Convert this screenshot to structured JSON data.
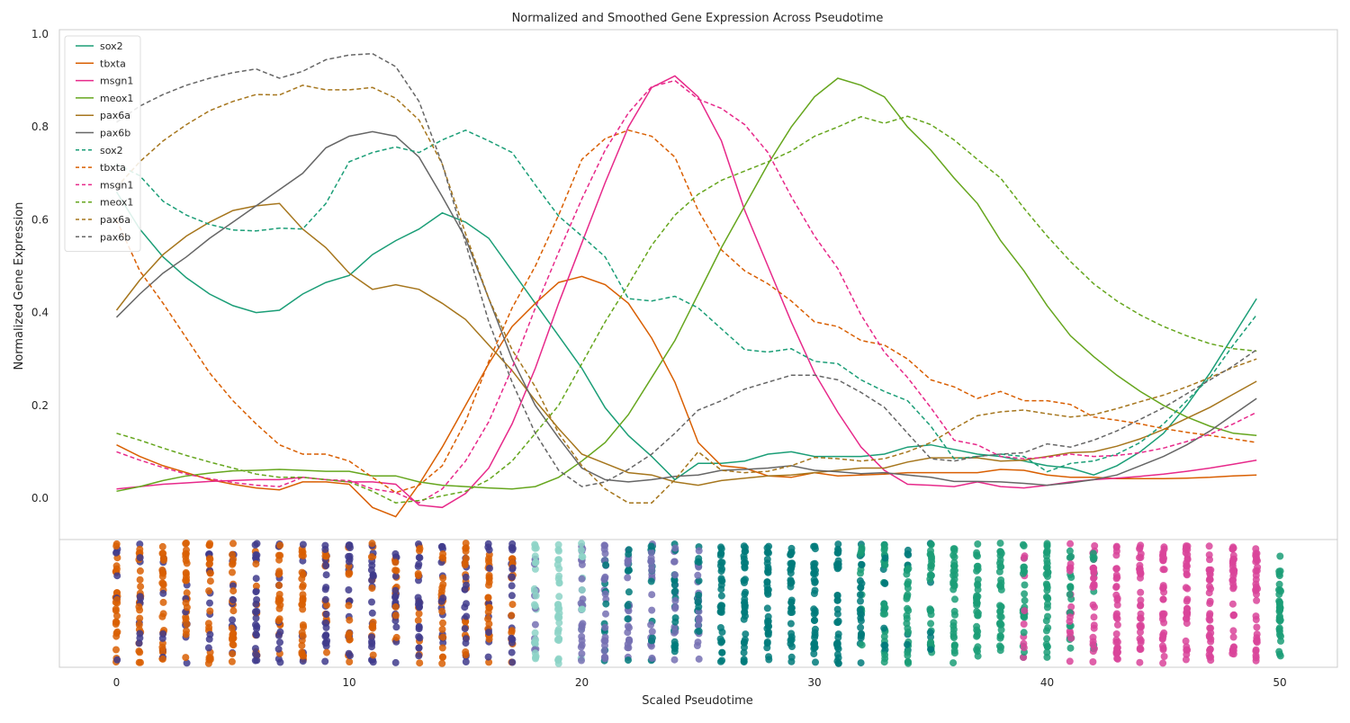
{
  "chart_data": {
    "type": "line",
    "title": "Normalized and Smoothed Gene Expression Across Pseudotime",
    "xlabel": "Scaled Pseudotime",
    "ylabel": "Normalized Gene Expression",
    "xlim": [
      -2.5,
      52.5
    ],
    "ylim": [
      -0.09,
      1.0
    ],
    "xticks": [
      0,
      10,
      20,
      30,
      40,
      50
    ],
    "yticks": [
      0.0,
      0.2,
      0.4,
      0.6,
      0.8,
      1.0
    ],
    "grid": false,
    "legend_position": "top-left",
    "x": [
      0,
      1,
      2,
      3,
      4,
      5,
      6,
      7,
      8,
      9,
      10,
      11,
      12,
      13,
      14,
      15,
      16,
      17,
      18,
      19,
      20,
      21,
      22,
      23,
      24,
      25,
      26,
      27,
      28,
      29,
      30,
      31,
      32,
      33,
      34,
      35,
      36,
      37,
      38,
      39,
      40,
      41,
      42,
      43,
      44,
      45,
      46,
      47,
      48,
      49
    ],
    "series": [
      {
        "name": "sox2",
        "color": "#1b9e77",
        "style": "solid",
        "values": [
          0.66,
          0.58,
          0.52,
          0.475,
          0.44,
          0.415,
          0.4,
          0.405,
          0.44,
          0.465,
          0.48,
          0.525,
          0.555,
          0.58,
          0.615,
          0.595,
          0.56,
          0.49,
          0.42,
          0.35,
          0.28,
          0.195,
          0.135,
          0.09,
          0.04,
          0.075,
          0.075,
          0.08,
          0.095,
          0.1,
          0.09,
          0.09,
          0.09,
          0.095,
          0.11,
          0.115,
          0.105,
          0.095,
          0.09,
          0.08,
          0.07,
          0.065,
          0.05,
          0.07,
          0.1,
          0.14,
          0.2,
          0.27,
          0.35,
          0.43
        ]
      },
      {
        "name": "tbxta",
        "color": "#d95f02",
        "style": "solid",
        "values": [
          0.115,
          0.09,
          0.07,
          0.055,
          0.04,
          0.03,
          0.022,
          0.018,
          0.035,
          0.035,
          0.03,
          -0.02,
          -0.04,
          0.03,
          0.11,
          0.2,
          0.29,
          0.37,
          0.42,
          0.465,
          0.478,
          0.46,
          0.42,
          0.345,
          0.25,
          0.12,
          0.07,
          0.065,
          0.048,
          0.045,
          0.055,
          0.048,
          0.05,
          0.052,
          0.055,
          0.055,
          0.055,
          0.055,
          0.062,
          0.06,
          0.05,
          0.045,
          0.045,
          0.042,
          0.042,
          0.042,
          0.043,
          0.045,
          0.048,
          0.05
        ]
      },
      {
        "name": "msgn1",
        "color": "#e7298a",
        "style": "solid",
        "values": [
          0.02,
          0.025,
          0.03,
          0.033,
          0.036,
          0.038,
          0.04,
          0.04,
          0.045,
          0.04,
          0.035,
          0.035,
          0.03,
          -0.015,
          -0.02,
          0.01,
          0.065,
          0.16,
          0.28,
          0.42,
          0.55,
          0.68,
          0.8,
          0.885,
          0.91,
          0.865,
          0.77,
          0.62,
          0.5,
          0.38,
          0.27,
          0.185,
          0.11,
          0.06,
          0.03,
          0.028,
          0.025,
          0.035,
          0.025,
          0.022,
          0.028,
          0.035,
          0.04,
          0.043,
          0.047,
          0.052,
          0.058,
          0.065,
          0.073,
          0.082
        ]
      },
      {
        "name": "meox1",
        "color": "#66a61e",
        "style": "solid",
        "values": [
          0.015,
          0.025,
          0.038,
          0.048,
          0.054,
          0.059,
          0.06,
          0.062,
          0.06,
          0.058,
          0.058,
          0.048,
          0.048,
          0.035,
          0.028,
          0.025,
          0.022,
          0.02,
          0.025,
          0.045,
          0.08,
          0.12,
          0.18,
          0.26,
          0.34,
          0.44,
          0.54,
          0.63,
          0.72,
          0.8,
          0.865,
          0.905,
          0.89,
          0.865,
          0.8,
          0.75,
          0.69,
          0.635,
          0.555,
          0.49,
          0.415,
          0.35,
          0.305,
          0.265,
          0.23,
          0.2,
          0.175,
          0.155,
          0.14,
          0.135
        ]
      },
      {
        "name": "pax6a",
        "color": "#a6761d",
        "style": "solid",
        "values": [
          0.405,
          0.47,
          0.525,
          0.565,
          0.595,
          0.62,
          0.63,
          0.635,
          0.58,
          0.54,
          0.485,
          0.45,
          0.46,
          0.45,
          0.42,
          0.385,
          0.33,
          0.275,
          0.21,
          0.15,
          0.095,
          0.075,
          0.055,
          0.05,
          0.035,
          0.028,
          0.038,
          0.043,
          0.048,
          0.05,
          0.055,
          0.06,
          0.065,
          0.065,
          0.078,
          0.087,
          0.087,
          0.087,
          0.08,
          0.082,
          0.09,
          0.098,
          0.1,
          0.112,
          0.128,
          0.148,
          0.172,
          0.196,
          0.224,
          0.252
        ]
      },
      {
        "name": "pax6b",
        "color": "#666666",
        "style": "solid",
        "values": [
          0.39,
          0.44,
          0.485,
          0.52,
          0.56,
          0.595,
          0.63,
          0.665,
          0.7,
          0.755,
          0.78,
          0.79,
          0.78,
          0.735,
          0.65,
          0.56,
          0.43,
          0.3,
          0.2,
          0.13,
          0.065,
          0.04,
          0.035,
          0.04,
          0.047,
          0.05,
          0.06,
          0.062,
          0.065,
          0.07,
          0.06,
          0.057,
          0.053,
          0.055,
          0.05,
          0.045,
          0.036,
          0.036,
          0.035,
          0.032,
          0.028,
          0.033,
          0.04,
          0.05,
          0.07,
          0.09,
          0.115,
          0.145,
          0.18,
          0.215
        ]
      },
      {
        "name": "sox2",
        "color": "#1b9e77",
        "style": "dashed",
        "values": [
          0.72,
          0.695,
          0.64,
          0.61,
          0.59,
          0.578,
          0.576,
          0.582,
          0.58,
          0.635,
          0.725,
          0.745,
          0.757,
          0.745,
          0.772,
          0.793,
          0.77,
          0.745,
          0.675,
          0.608,
          0.565,
          0.52,
          0.43,
          0.425,
          0.435,
          0.41,
          0.365,
          0.32,
          0.315,
          0.322,
          0.295,
          0.29,
          0.255,
          0.23,
          0.21,
          0.155,
          0.085,
          0.09,
          0.095,
          0.09,
          0.057,
          0.075,
          0.08,
          0.095,
          0.12,
          0.16,
          0.21,
          0.26,
          0.33,
          0.395
        ]
      },
      {
        "name": "tbxta",
        "color": "#d95f02",
        "style": "dashed",
        "values": [
          0.6,
          0.49,
          0.42,
          0.345,
          0.27,
          0.21,
          0.16,
          0.115,
          0.095,
          0.095,
          0.08,
          0.045,
          0.012,
          0.028,
          0.07,
          0.165,
          0.295,
          0.41,
          0.5,
          0.61,
          0.73,
          0.775,
          0.793,
          0.78,
          0.735,
          0.62,
          0.535,
          0.49,
          0.462,
          0.425,
          0.38,
          0.37,
          0.34,
          0.33,
          0.3,
          0.255,
          0.24,
          0.215,
          0.23,
          0.21,
          0.21,
          0.202,
          0.175,
          0.168,
          0.16,
          0.15,
          0.142,
          0.135,
          0.128,
          0.12
        ]
      },
      {
        "name": "msgn1",
        "color": "#e7298a",
        "style": "dashed",
        "values": [
          0.1,
          0.082,
          0.066,
          0.052,
          0.042,
          0.034,
          0.028,
          0.025,
          0.045,
          0.04,
          0.038,
          0.02,
          0.012,
          -0.01,
          0.02,
          0.08,
          0.165,
          0.28,
          0.41,
          0.53,
          0.645,
          0.75,
          0.83,
          0.887,
          0.9,
          0.86,
          0.84,
          0.805,
          0.745,
          0.65,
          0.565,
          0.495,
          0.395,
          0.315,
          0.26,
          0.195,
          0.125,
          0.115,
          0.09,
          0.085,
          0.088,
          0.095,
          0.09,
          0.092,
          0.098,
          0.108,
          0.122,
          0.138,
          0.16,
          0.185
        ]
      },
      {
        "name": "meox1",
        "color": "#66a61e",
        "style": "dashed",
        "values": [
          0.14,
          0.125,
          0.108,
          0.092,
          0.078,
          0.065,
          0.052,
          0.045,
          0.045,
          0.04,
          0.035,
          0.015,
          -0.01,
          -0.005,
          0.005,
          0.015,
          0.04,
          0.08,
          0.14,
          0.2,
          0.29,
          0.38,
          0.46,
          0.545,
          0.61,
          0.655,
          0.685,
          0.705,
          0.725,
          0.748,
          0.78,
          0.8,
          0.822,
          0.808,
          0.823,
          0.805,
          0.772,
          0.73,
          0.69,
          0.625,
          0.565,
          0.51,
          0.462,
          0.425,
          0.395,
          0.37,
          0.35,
          0.333,
          0.322,
          0.317
        ]
      },
      {
        "name": "pax6a",
        "color": "#a6761d",
        "style": "dashed",
        "values": [
          0.67,
          0.725,
          0.77,
          0.805,
          0.835,
          0.855,
          0.87,
          0.869,
          0.89,
          0.88,
          0.88,
          0.885,
          0.862,
          0.815,
          0.72,
          0.57,
          0.43,
          0.32,
          0.24,
          0.14,
          0.07,
          0.02,
          -0.01,
          -0.01,
          0.04,
          0.1,
          0.06,
          0.055,
          0.058,
          0.07,
          0.088,
          0.085,
          0.08,
          0.085,
          0.1,
          0.12,
          0.15,
          0.178,
          0.186,
          0.19,
          0.182,
          0.175,
          0.18,
          0.193,
          0.208,
          0.222,
          0.24,
          0.26,
          0.282,
          0.3
        ]
      },
      {
        "name": "pax6b",
        "color": "#666666",
        "style": "dashed",
        "values": [
          0.81,
          0.845,
          0.87,
          0.89,
          0.905,
          0.917,
          0.925,
          0.905,
          0.92,
          0.945,
          0.955,
          0.958,
          0.93,
          0.855,
          0.72,
          0.55,
          0.38,
          0.25,
          0.14,
          0.06,
          0.025,
          0.035,
          0.062,
          0.095,
          0.14,
          0.19,
          0.21,
          0.235,
          0.25,
          0.265,
          0.265,
          0.255,
          0.228,
          0.196,
          0.14,
          0.085,
          0.08,
          0.09,
          0.095,
          0.098,
          0.117,
          0.11,
          0.125,
          0.145,
          0.17,
          0.195,
          0.225,
          0.255,
          0.285,
          0.32
        ]
      }
    ],
    "strip": {
      "description_of_bins": "cells per scaled pseudotime bin, colored by cluster",
      "palette": [
        "#d95f02",
        "#3f3b8c",
        "#8dd3c7",
        "#7570b3",
        "#007a7a",
        "#1b9e77",
        "#d9449a"
      ],
      "bins": [
        {
          "x": 0,
          "colors": [
            0,
            0,
            0,
            1
          ]
        },
        {
          "x": 1,
          "colors": [
            0,
            0,
            1
          ]
        },
        {
          "x": 2,
          "colors": [
            0,
            0,
            1
          ]
        },
        {
          "x": 3,
          "colors": [
            0,
            0,
            1
          ]
        },
        {
          "x": 4,
          "colors": [
            0,
            1,
            0
          ]
        },
        {
          "x": 5,
          "colors": [
            0,
            1,
            0
          ]
        },
        {
          "x": 6,
          "colors": [
            1,
            0,
            1
          ]
        },
        {
          "x": 7,
          "colors": [
            0,
            1,
            0
          ]
        },
        {
          "x": 8,
          "colors": [
            0,
            1,
            0
          ]
        },
        {
          "x": 9,
          "colors": [
            0,
            1,
            1
          ]
        },
        {
          "x": 10,
          "colors": [
            1,
            0,
            1
          ]
        },
        {
          "x": 11,
          "colors": [
            1,
            0,
            1
          ]
        },
        {
          "x": 12,
          "colors": [
            0,
            1,
            1
          ]
        },
        {
          "x": 13,
          "colors": [
            0,
            1,
            1
          ]
        },
        {
          "x": 14,
          "colors": [
            0,
            1,
            0
          ]
        },
        {
          "x": 15,
          "colors": [
            0,
            1,
            1
          ]
        },
        {
          "x": 16,
          "colors": [
            0,
            1,
            0
          ]
        },
        {
          "x": 17,
          "colors": [
            0,
            1,
            1
          ]
        },
        {
          "x": 18,
          "colors": [
            2,
            3,
            2
          ]
        },
        {
          "x": 19,
          "colors": [
            2,
            2,
            2
          ]
        },
        {
          "x": 20,
          "colors": [
            3,
            3,
            2
          ]
        },
        {
          "x": 21,
          "colors": [
            3,
            3,
            4
          ]
        },
        {
          "x": 22,
          "colors": [
            3,
            4,
            3
          ]
        },
        {
          "x": 23,
          "colors": [
            3,
            4,
            3
          ]
        },
        {
          "x": 24,
          "colors": [
            3,
            4,
            4
          ]
        },
        {
          "x": 25,
          "colors": [
            4,
            4,
            3
          ]
        },
        {
          "x": 26,
          "colors": [
            4,
            4,
            4
          ]
        },
        {
          "x": 27,
          "colors": [
            4,
            4,
            4
          ]
        },
        {
          "x": 28,
          "colors": [
            4,
            4,
            4
          ]
        },
        {
          "x": 29,
          "colors": [
            4,
            4,
            4
          ]
        },
        {
          "x": 30,
          "colors": [
            4,
            4,
            4
          ]
        },
        {
          "x": 31,
          "colors": [
            4,
            4,
            4
          ]
        },
        {
          "x": 32,
          "colors": [
            4,
            4,
            5
          ]
        },
        {
          "x": 33,
          "colors": [
            4,
            5,
            5
          ]
        },
        {
          "x": 34,
          "colors": [
            5,
            5,
            4
          ]
        },
        {
          "x": 35,
          "colors": [
            5,
            5,
            4
          ]
        },
        {
          "x": 36,
          "colors": [
            5,
            5,
            5
          ]
        },
        {
          "x": 37,
          "colors": [
            5,
            5,
            5
          ]
        },
        {
          "x": 38,
          "colors": [
            5,
            5,
            5
          ]
        },
        {
          "x": 39,
          "colors": [
            5,
            5,
            6
          ]
        },
        {
          "x": 40,
          "colors": [
            5,
            5,
            5
          ]
        },
        {
          "x": 41,
          "colors": [
            5,
            6,
            5
          ]
        },
        {
          "x": 42,
          "colors": [
            5,
            6,
            6
          ]
        },
        {
          "x": 43,
          "colors": [
            6,
            6,
            6
          ]
        },
        {
          "x": 44,
          "colors": [
            6,
            6,
            6
          ]
        },
        {
          "x": 45,
          "colors": [
            6,
            6,
            6
          ]
        },
        {
          "x": 46,
          "colors": [
            6,
            6,
            6
          ]
        },
        {
          "x": 47,
          "colors": [
            6,
            6,
            6
          ]
        },
        {
          "x": 48,
          "colors": [
            6,
            6,
            6
          ]
        },
        {
          "x": 49,
          "colors": [
            6,
            6,
            6
          ]
        },
        {
          "x": 50,
          "colors": [
            5,
            5,
            5
          ]
        }
      ]
    }
  }
}
